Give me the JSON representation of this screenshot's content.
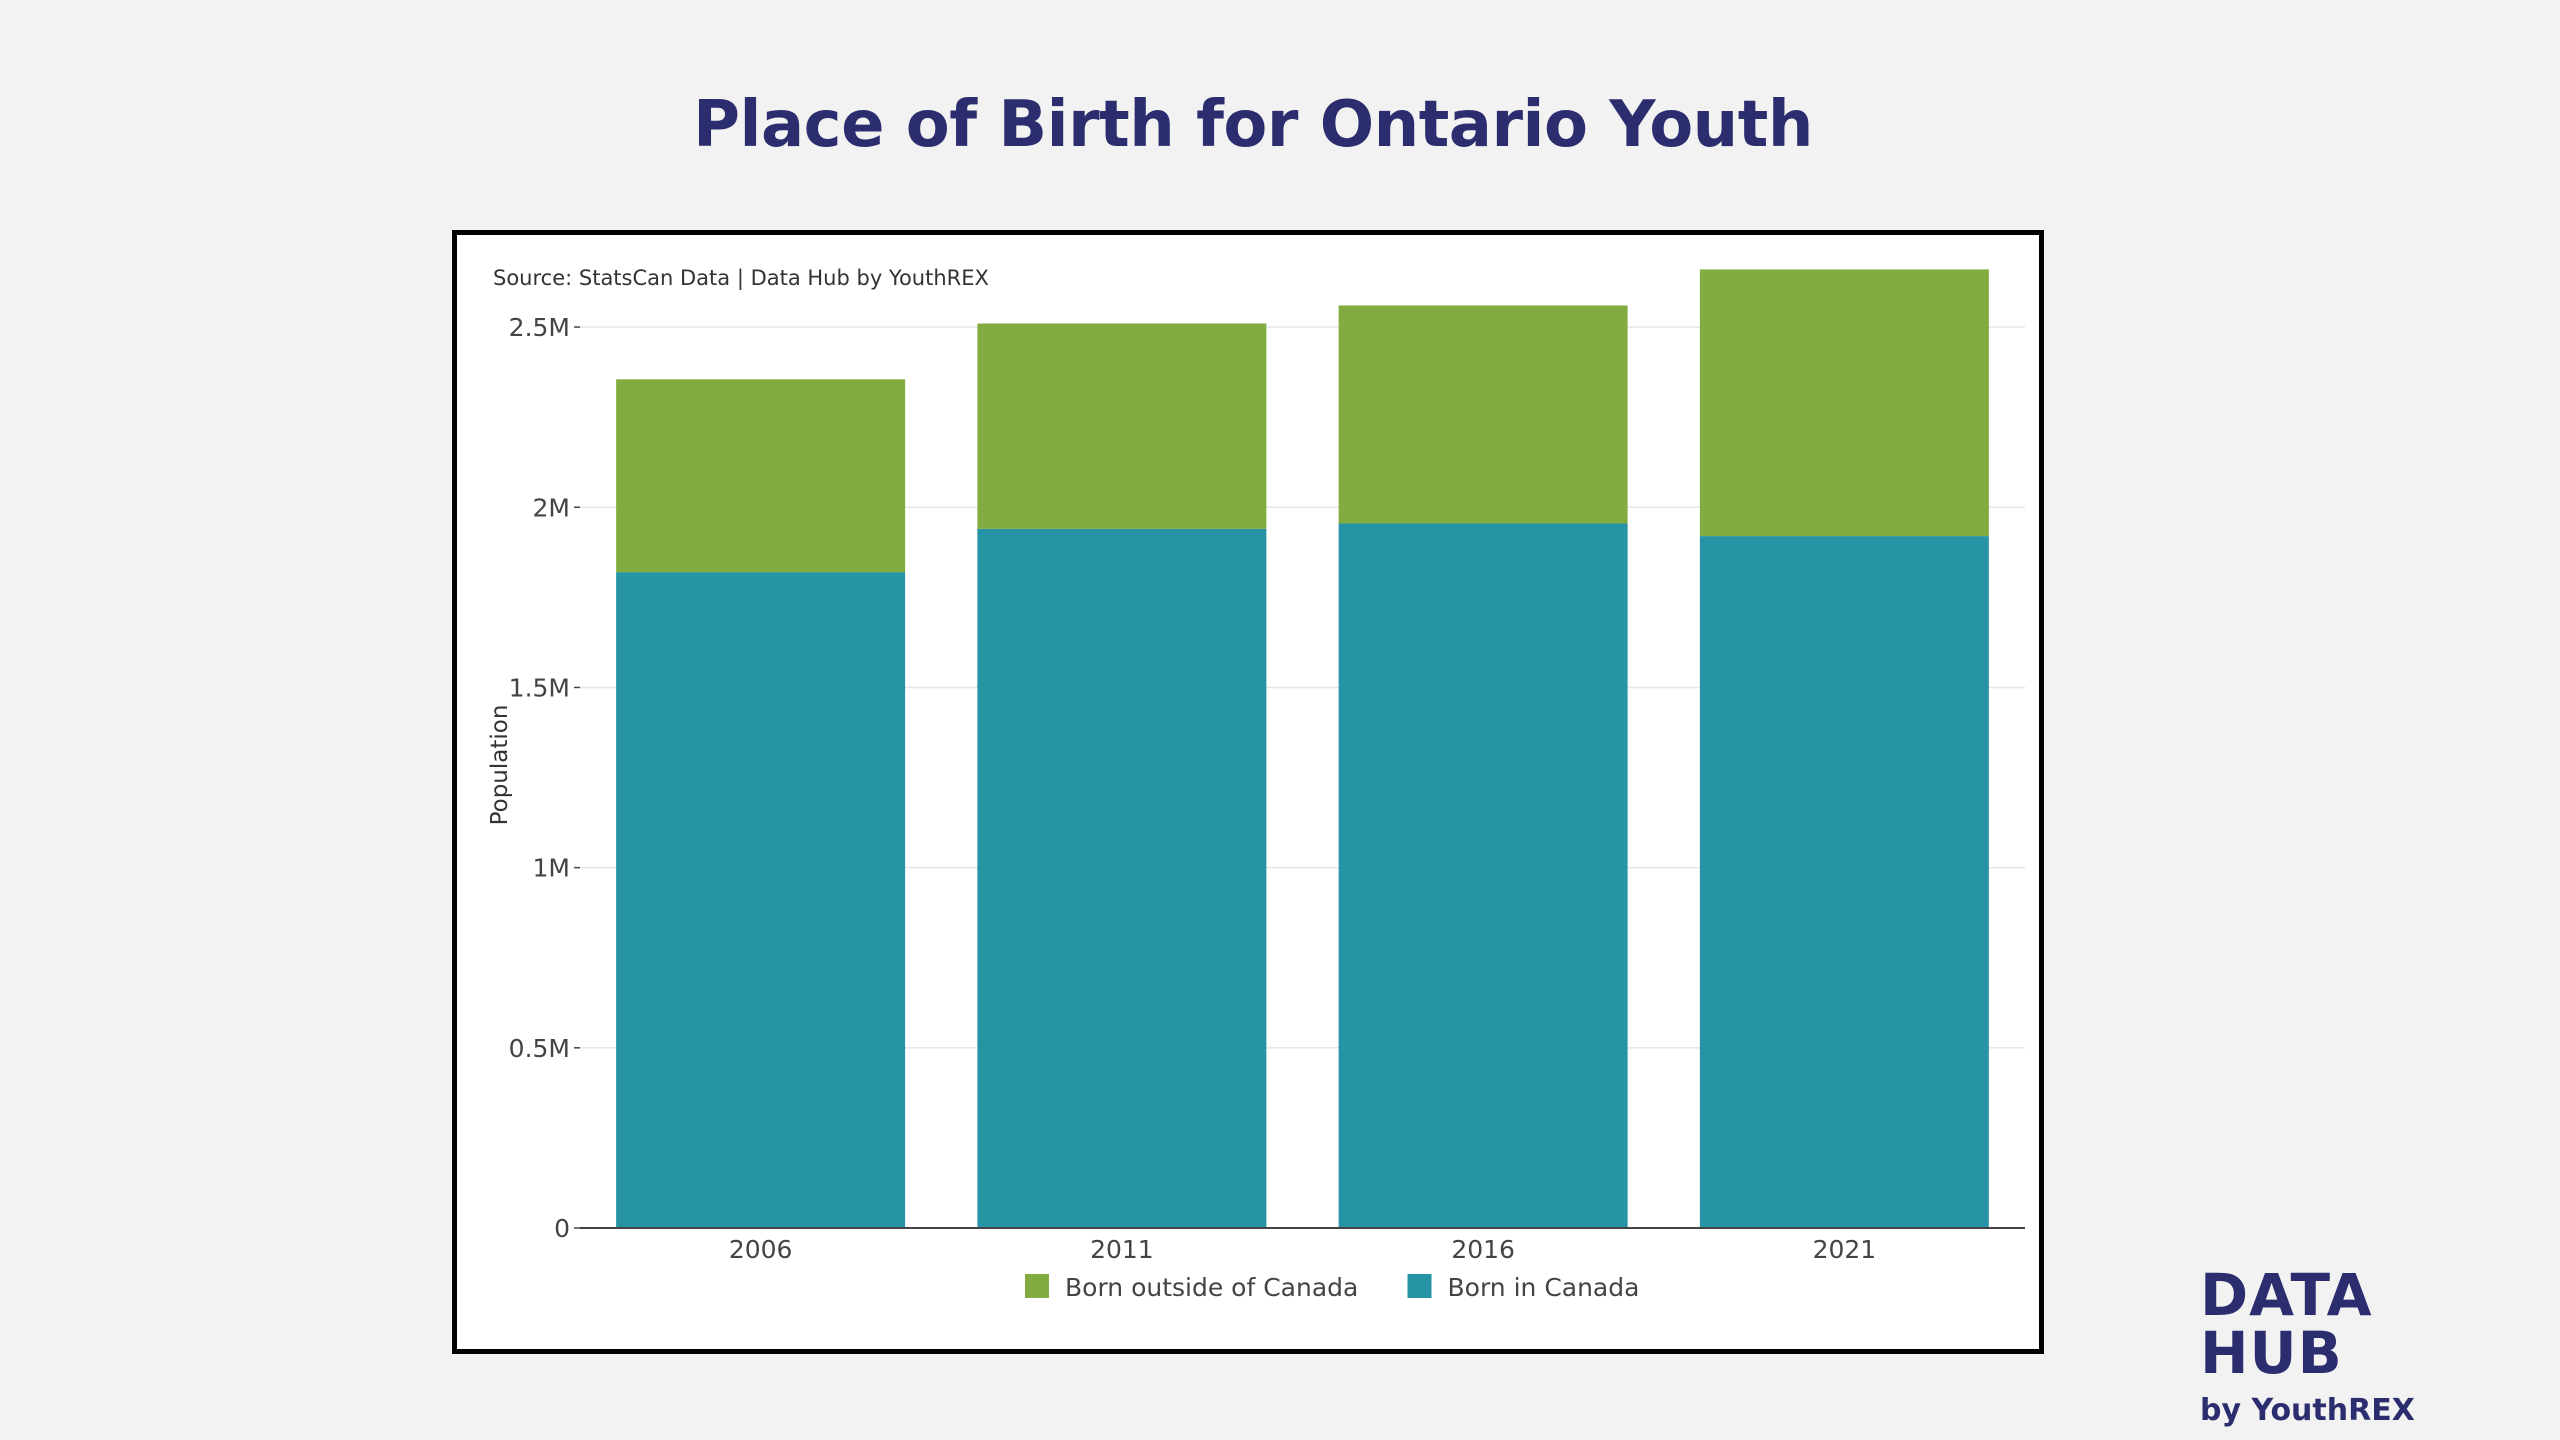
{
  "title": "Place of Birth for Ontario Youth",
  "brand": {
    "name": "DATA HUB",
    "byline": "by YouthREX"
  },
  "chart_data": {
    "type": "bar",
    "stacked": true,
    "source": "Source: StatsCan Data | Data Hub by YouthREX",
    "categories": [
      "2006",
      "2011",
      "2016",
      "2021"
    ],
    "series": [
      {
        "name": "Born in Canada",
        "color": "#2694a5",
        "values": [
          1820000,
          1940000,
          1955000,
          1920000
        ]
      },
      {
        "name": "Born outside of Canada",
        "color": "#82ac40",
        "values": [
          535000,
          570000,
          605000,
          740000
        ]
      }
    ],
    "xlabel": "",
    "ylabel": "Population",
    "ylim": [
      0,
      2700000
    ],
    "yticks": [
      {
        "value": 0,
        "label": "0"
      },
      {
        "value": 500000,
        "label": "0.5M"
      },
      {
        "value": 1000000,
        "label": "1M"
      },
      {
        "value": 1500000,
        "label": "1.5M"
      },
      {
        "value": 2000000,
        "label": "2M"
      },
      {
        "value": 2500000,
        "label": "2.5M"
      }
    ],
    "legend": {
      "placement": "bottom",
      "order": [
        "Born outside of Canada",
        "Born in Canada"
      ]
    },
    "grid": true
  }
}
